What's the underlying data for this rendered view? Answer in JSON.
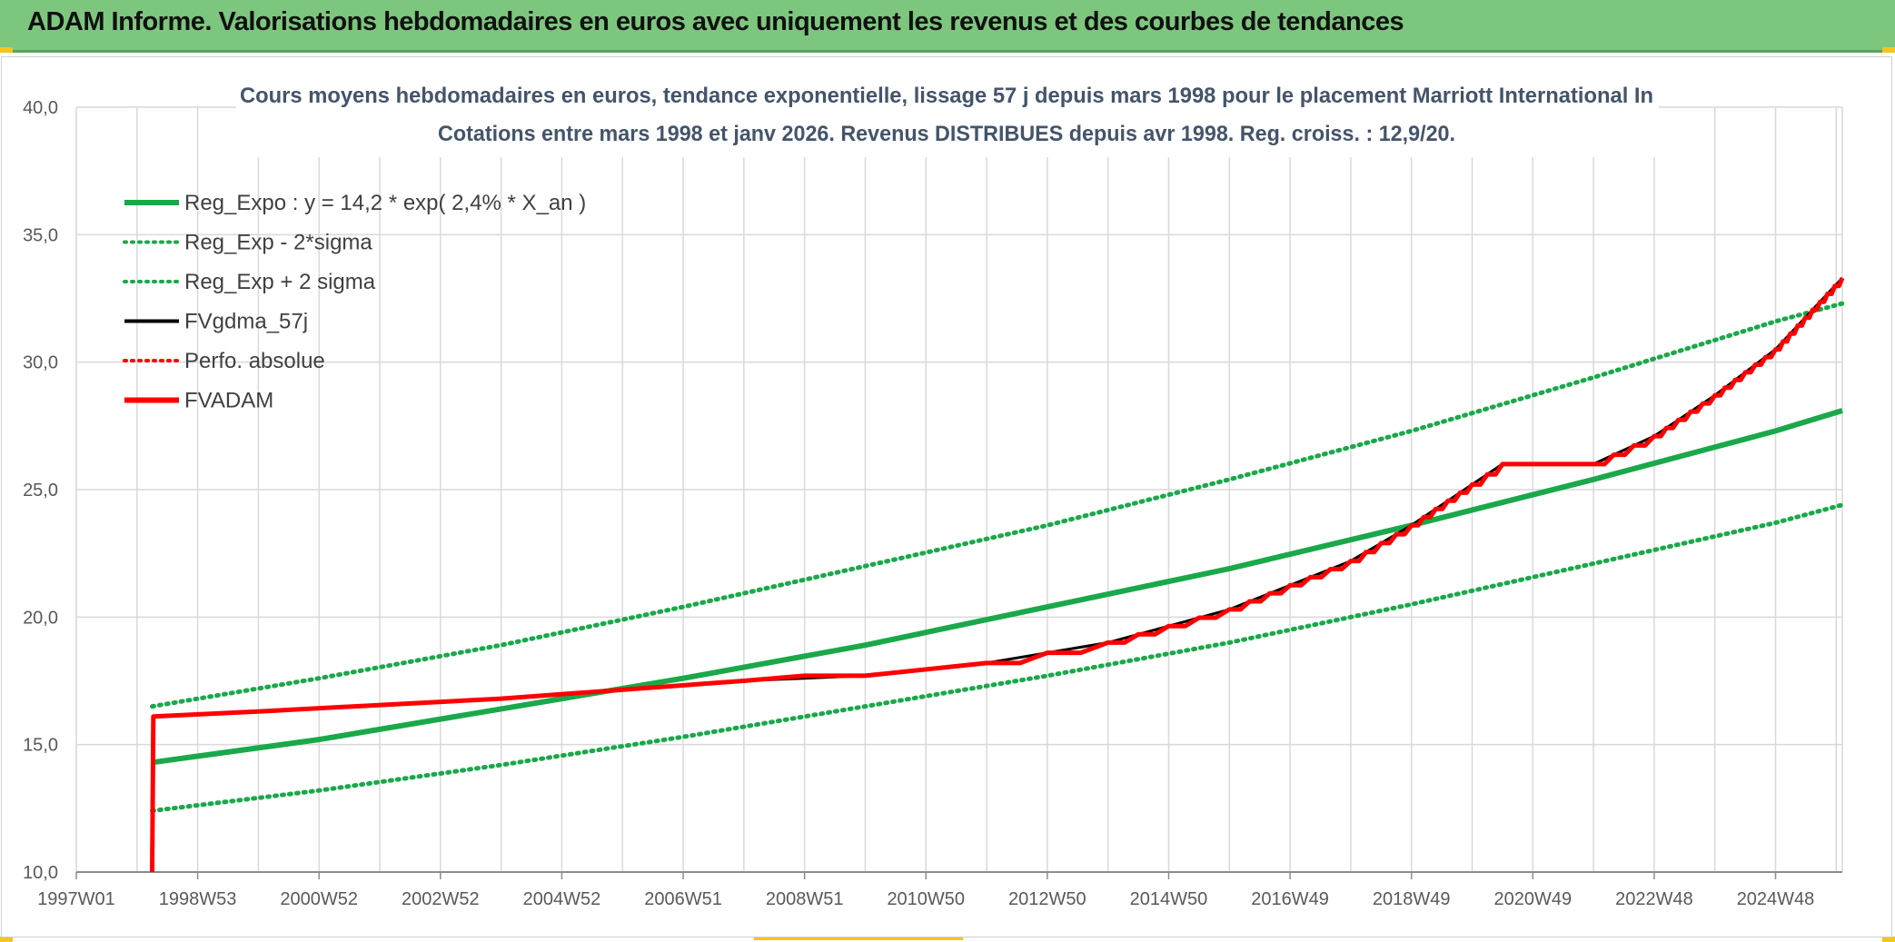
{
  "banner": {
    "title": "ADAM Informe. Valorisations hebdomadaires en euros avec uniquement les revenus et des courbes de tendances"
  },
  "colors": {
    "banner_bg": "#7dc67e",
    "green": "#1aa84a",
    "red": "#ff0000",
    "black": "#000000",
    "grid": "#d9d9d9",
    "corner": "#f5c518"
  },
  "chart_data": {
    "type": "line",
    "title_line1": "Cours moyens hebdomadaires en euros, tendance exponentielle, lissage 57 j depuis mars 1998 pour le placement Marriott International In",
    "title_line2": "Cotations entre mars 1998 et janv 2026. Revenus DISTRIBUES depuis avr 1998. Reg. croiss. : 12,9/20.",
    "xlabel": "",
    "ylabel": "",
    "x_range": [
      1997.0,
      2026.1
    ],
    "ylim": [
      10,
      40
    ],
    "y_ticks": [
      "10,0",
      "15,0",
      "20,0",
      "25,0",
      "30,0",
      "35,0",
      "40,0"
    ],
    "x_ticks": [
      {
        "label": "1997W01",
        "year": 1997.0
      },
      {
        "label": "1998W53",
        "year": 1999.0
      },
      {
        "label": "2000W52",
        "year": 2001.0
      },
      {
        "label": "2002W52",
        "year": 2003.0
      },
      {
        "label": "2004W52",
        "year": 2005.0
      },
      {
        "label": "2006W51",
        "year": 2007.0
      },
      {
        "label": "2008W51",
        "year": 2009.0
      },
      {
        "label": "2010W50",
        "year": 2011.0
      },
      {
        "label": "2012W50",
        "year": 2013.0
      },
      {
        "label": "2014W50",
        "year": 2015.0
      },
      {
        "label": "2016W49",
        "year": 2017.0
      },
      {
        "label": "2018W49",
        "year": 2019.0
      },
      {
        "label": "2020W49",
        "year": 2021.0
      },
      {
        "label": "2022W48",
        "year": 2023.0
      },
      {
        "label": "2024W48",
        "year": 2025.0
      }
    ],
    "grid": true,
    "legend_position": "top-left",
    "series": [
      {
        "name": "Reg_Expo : y = 14,2 * exp( 2,4% *  X_an )",
        "style": "solid",
        "color": "#1aa84a",
        "x": [
          1998.25,
          2001.0,
          2004.0,
          2007.0,
          2010.0,
          2013.0,
          2016.0,
          2019.0,
          2022.0,
          2025.0,
          2026.1
        ],
        "y": [
          14.3,
          15.2,
          16.4,
          17.6,
          18.9,
          20.4,
          21.9,
          23.6,
          25.4,
          27.3,
          28.1
        ]
      },
      {
        "name": "Reg_Exp - 2*sigma",
        "style": "dotted",
        "color": "#1aa84a",
        "x": [
          1998.25,
          2001.0,
          2004.0,
          2007.0,
          2010.0,
          2013.0,
          2016.0,
          2019.0,
          2022.0,
          2025.0,
          2026.1
        ],
        "y": [
          12.4,
          13.2,
          14.2,
          15.3,
          16.5,
          17.7,
          19.0,
          20.5,
          22.1,
          23.7,
          24.4
        ]
      },
      {
        "name": "Reg_Exp + 2 sigma",
        "style": "dotted",
        "color": "#1aa84a",
        "x": [
          1998.25,
          2001.0,
          2004.0,
          2007.0,
          2010.0,
          2013.0,
          2016.0,
          2019.0,
          2022.0,
          2025.0,
          2026.1
        ],
        "y": [
          16.5,
          17.6,
          18.9,
          20.4,
          22.0,
          23.6,
          25.4,
          27.3,
          29.4,
          31.6,
          32.3
        ]
      },
      {
        "name": "FVgdma_57j",
        "style": "solid",
        "color": "#000000",
        "x": [
          1998.25,
          2000.0,
          2004.0,
          2008.0,
          2010.0,
          2012.0,
          2014.0,
          2016.0,
          2018.0,
          2019.0,
          2020.0,
          2020.5,
          2022.0,
          2023.0,
          2024.0,
          2025.0,
          2026.1
        ],
        "y": [
          16.1,
          16.3,
          16.8,
          17.5,
          17.7,
          18.2,
          19.0,
          20.3,
          22.2,
          23.6,
          25.2,
          26.0,
          26.0,
          27.1,
          28.7,
          30.5,
          33.3
        ]
      },
      {
        "name": "Perfo. absolue",
        "style": "dotted",
        "color": "#ff0000",
        "x": [],
        "y": []
      },
      {
        "name": "FVADAM",
        "style": "solid-step",
        "color": "#ff0000",
        "x": [
          1998.25,
          1998.25,
          1998.27,
          2000.0,
          2004.0,
          2008.0,
          2009.0,
          2010.0,
          2012.0,
          2014.0,
          2016.0,
          2018.0,
          2019.0,
          2020.0,
          2020.5,
          2022.0,
          2023.0,
          2024.0,
          2025.0,
          2026.1
        ],
        "y": [
          10.0,
          10.0,
          16.1,
          16.3,
          16.8,
          17.5,
          17.7,
          17.7,
          18.2,
          19.0,
          20.3,
          22.2,
          23.6,
          25.2,
          26.0,
          26.0,
          27.1,
          28.7,
          30.5,
          33.3
        ]
      }
    ]
  }
}
